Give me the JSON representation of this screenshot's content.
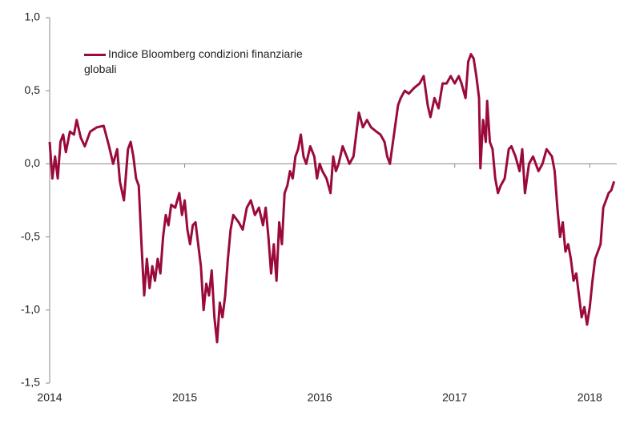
{
  "chart_data": {
    "type": "line",
    "x": [
      2014.0,
      2014.02,
      2014.04,
      2014.06,
      2014.08,
      2014.1,
      2014.12,
      2014.15,
      2014.18,
      2014.2,
      2014.23,
      2014.26,
      2014.3,
      2014.35,
      2014.4,
      2014.44,
      2014.47,
      2014.5,
      2014.52,
      2014.55,
      2014.58,
      2014.6,
      2014.62,
      2014.64,
      2014.66,
      2014.68,
      2014.7,
      2014.72,
      2014.74,
      2014.76,
      2014.78,
      2014.8,
      2014.82,
      2014.84,
      2014.86,
      2014.88,
      2014.9,
      2014.93,
      2014.96,
      2014.98,
      2015.0,
      2015.02,
      2015.04,
      2015.06,
      2015.08,
      2015.1,
      2015.12,
      2015.14,
      2015.16,
      2015.18,
      2015.2,
      2015.22,
      2015.24,
      2015.26,
      2015.28,
      2015.3,
      2015.32,
      2015.34,
      2015.36,
      2015.4,
      2015.43,
      2015.46,
      2015.49,
      2015.52,
      2015.55,
      2015.58,
      2015.6,
      2015.62,
      2015.64,
      2015.66,
      2015.68,
      2015.7,
      2015.72,
      2015.74,
      2015.76,
      2015.78,
      2015.8,
      2015.82,
      2015.84,
      2015.86,
      2015.88,
      2015.9,
      2015.93,
      2015.96,
      2015.98,
      2016.0,
      2016.02,
      2016.05,
      2016.08,
      2016.1,
      2016.12,
      2016.14,
      2016.17,
      2016.2,
      2016.22,
      2016.25,
      2016.27,
      2016.29,
      2016.32,
      2016.35,
      2016.38,
      2016.42,
      2016.45,
      2016.48,
      2016.5,
      2016.52,
      2016.55,
      2016.58,
      2016.6,
      2016.63,
      2016.66,
      2016.7,
      2016.74,
      2016.77,
      2016.8,
      2016.82,
      2016.85,
      2016.88,
      2016.91,
      2016.94,
      2016.97,
      2017.0,
      2017.03,
      2017.05,
      2017.08,
      2017.1,
      2017.12,
      2017.14,
      2017.16,
      2017.18,
      2017.19,
      2017.21,
      2017.23,
      2017.24,
      2017.26,
      2017.28,
      2017.3,
      2017.32,
      2017.34,
      2017.37,
      2017.4,
      2017.42,
      2017.45,
      2017.48,
      2017.5,
      2017.52,
      2017.55,
      2017.58,
      2017.62,
      2017.65,
      2017.68,
      2017.72,
      2017.74,
      2017.76,
      2017.78,
      2017.8,
      2017.82,
      2017.84,
      2017.86,
      2017.88,
      2017.9,
      2017.92,
      2017.94,
      2017.96,
      2017.98,
      2018.0,
      2018.02,
      2018.04,
      2018.06,
      2018.08,
      2018.1,
      2018.12,
      2018.14,
      2018.16,
      2018.18
    ],
    "series": [
      {
        "name": "Indice Bloomberg condizioni finanziarie globali",
        "color": "#9b0a3c",
        "values": [
          0.15,
          -0.1,
          0.05,
          -0.1,
          0.15,
          0.2,
          0.08,
          0.22,
          0.2,
          0.3,
          0.18,
          0.12,
          0.22,
          0.25,
          0.26,
          0.12,
          0.0,
          0.1,
          -0.12,
          -0.25,
          0.1,
          0.15,
          0.05,
          -0.1,
          -0.15,
          -0.55,
          -0.9,
          -0.65,
          -0.85,
          -0.7,
          -0.8,
          -0.65,
          -0.75,
          -0.5,
          -0.35,
          -0.42,
          -0.28,
          -0.3,
          -0.2,
          -0.35,
          -0.25,
          -0.45,
          -0.55,
          -0.42,
          -0.4,
          -0.55,
          -0.7,
          -1.0,
          -0.82,
          -0.9,
          -0.73,
          -1.05,
          -1.22,
          -0.95,
          -1.05,
          -0.9,
          -0.65,
          -0.45,
          -0.35,
          -0.4,
          -0.45,
          -0.3,
          -0.25,
          -0.35,
          -0.3,
          -0.42,
          -0.3,
          -0.5,
          -0.75,
          -0.55,
          -0.8,
          -0.4,
          -0.55,
          -0.2,
          -0.15,
          -0.05,
          -0.1,
          0.05,
          0.1,
          0.2,
          0.05,
          0.0,
          0.12,
          0.05,
          -0.1,
          0.0,
          -0.05,
          -0.1,
          -0.2,
          0.05,
          -0.05,
          0.0,
          0.12,
          0.05,
          0.0,
          0.05,
          0.2,
          0.35,
          0.25,
          0.3,
          0.25,
          0.22,
          0.2,
          0.15,
          0.05,
          0.0,
          0.2,
          0.4,
          0.45,
          0.5,
          0.48,
          0.52,
          0.55,
          0.6,
          0.4,
          0.32,
          0.45,
          0.38,
          0.55,
          0.55,
          0.6,
          0.55,
          0.6,
          0.55,
          0.45,
          0.7,
          0.75,
          0.72,
          0.6,
          0.45,
          -0.03,
          0.3,
          0.15,
          0.43,
          0.15,
          0.1,
          -0.1,
          -0.2,
          -0.15,
          -0.1,
          0.1,
          0.12,
          0.05,
          -0.05,
          0.1,
          -0.2,
          0.0,
          0.05,
          -0.05,
          0.0,
          0.1,
          0.05,
          -0.05,
          -0.3,
          -0.5,
          -0.4,
          -0.6,
          -0.55,
          -0.65,
          -0.8,
          -0.75,
          -0.9,
          -1.05,
          -0.98,
          -1.1,
          -0.98,
          -0.8,
          -0.65,
          -0.6,
          -0.55,
          -0.3,
          -0.25,
          -0.2,
          -0.18,
          -0.12
        ]
      }
    ],
    "xlim": [
      2014,
      2018.2
    ],
    "xticks": [
      2014,
      2015,
      2016,
      2017,
      2018
    ],
    "ylim": [
      -1.5,
      1.0
    ],
    "yticks": [
      {
        "value": -1.5,
        "label": "-1,5"
      },
      {
        "value": -1.0,
        "label": "-1,0"
      },
      {
        "value": -0.5,
        "label": "-0,5"
      },
      {
        "value": 0.0,
        "label": "0,0"
      },
      {
        "value": 0.5,
        "label": "0,5"
      },
      {
        "value": 1.0,
        "label": "1,0"
      }
    ],
    "legend": "top-left"
  }
}
